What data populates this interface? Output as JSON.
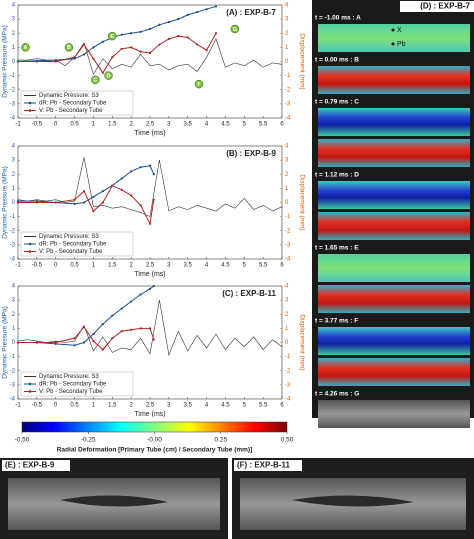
{
  "chart_data": [
    {
      "type": "line",
      "title": "(A) : EXP-B-7",
      "xlabel": "Time (ms)",
      "ylabel": "Dynamic Pressure (MPa)",
      "y2label": "Displacement (mm)",
      "xlim": [
        -1,
        6
      ],
      "xticks": [
        -1,
        -0.5,
        0,
        0.5,
        1,
        1.5,
        2,
        2.5,
        3,
        3.5,
        4,
        4.5,
        5,
        5.5,
        6
      ],
      "ylim": [
        -4,
        4
      ],
      "yticks": [
        -4,
        -3,
        -2,
        -1,
        0,
        1,
        2,
        3,
        4
      ],
      "y2lim": [
        -4,
        4
      ],
      "y2ticks": [
        -4,
        -3,
        -2,
        -1,
        0,
        1,
        2,
        3,
        4
      ],
      "legend": "lower left",
      "series": [
        {
          "name": "Dynamic Pressure: S3",
          "color": "#333333",
          "x": [
            -1,
            -0.75,
            -0.5,
            -0.25,
            0,
            0.25,
            0.5,
            0.75,
            1,
            1.25,
            1.5,
            1.75,
            2,
            2.25,
            2.5,
            2.75,
            3,
            3.25,
            3.5,
            3.75,
            4,
            4.25,
            4.5,
            4.75,
            5,
            5.25,
            5.5,
            5.75,
            6
          ],
          "values": [
            0.1,
            0.1,
            0.2,
            0.1,
            0.1,
            -0.3,
            0.3,
            1.3,
            -0.9,
            0.2,
            -0.5,
            -0.2,
            -0.4,
            0.5,
            -0.3,
            -0.2,
            -0.6,
            -0.3,
            -0.2,
            -0.7,
            0.3,
            1.6,
            -0.4,
            -0.1,
            -0.3,
            0.1,
            -0.4,
            -0.1,
            -0.2
          ]
        },
        {
          "name": "dR: Pb - Secondary Tube",
          "color": "#1a4f8a",
          "axis": "y2",
          "x": [
            -1,
            -0.5,
            0,
            0.5,
            0.75,
            1,
            1.25,
            1.5,
            1.75,
            2,
            2.25,
            2.5,
            2.75,
            3,
            3.25,
            3.5,
            3.75,
            4,
            4.25
          ],
          "values": [
            0,
            0.05,
            0.1,
            0.2,
            0.5,
            1.0,
            1.4,
            1.7,
            1.9,
            2.0,
            2.1,
            2.3,
            2.6,
            2.8,
            3.0,
            3.3,
            3.5,
            3.7,
            3.9
          ]
        },
        {
          "name": "V: Pb - Secondary Tube",
          "color": "#b22222",
          "axis": "y2",
          "x": [
            -1,
            -0.5,
            0,
            0.5,
            0.75,
            1,
            1.25,
            1.5,
            1.75,
            2,
            2.25,
            2.5,
            2.75,
            3,
            3.25,
            3.5,
            3.75,
            4,
            4.25
          ],
          "values": [
            0,
            0,
            0,
            0.3,
            1.2,
            0.2,
            -0.8,
            0.3,
            0.9,
            1.0,
            0.7,
            0.6,
            1.2,
            1.6,
            1.8,
            1.7,
            1.2,
            0.8,
            2.0
          ]
        }
      ],
      "annotations": [
        {
          "text": "A",
          "x": -0.8,
          "y": 1.0
        },
        {
          "text": "B",
          "x": 0.35,
          "y": 1.0
        },
        {
          "text": "C",
          "x": 1.05,
          "y": -1.3
        },
        {
          "text": "D",
          "x": 1.4,
          "y": -1.0
        },
        {
          "text": "E",
          "x": 1.5,
          "y": 1.8
        },
        {
          "text": "F",
          "x": 3.8,
          "y": -1.6
        },
        {
          "text": "G",
          "x": 4.75,
          "y": 2.3
        }
      ]
    },
    {
      "type": "line",
      "title": "(B) : EXP-B-9",
      "xlabel": "Time (ms)",
      "ylabel": "Dynamic Pressure (MPa)",
      "y2label": "Displacement (mm)",
      "xlim": [
        -1,
        6
      ],
      "xticks": [
        -1,
        -0.5,
        0,
        0.5,
        1,
        1.5,
        2,
        2.5,
        3,
        3.5,
        4,
        4.5,
        5,
        5.5,
        6
      ],
      "ylim": [
        -4,
        4
      ],
      "yticks": [
        -4,
        -3,
        -2,
        -1,
        0,
        1,
        2,
        3,
        4
      ],
      "y2lim": [
        -4,
        4
      ],
      "y2ticks": [
        -4,
        -3,
        -2,
        -1,
        0,
        1,
        2,
        3,
        4
      ],
      "legend": "lower left",
      "series": [
        {
          "name": "Dynamic Pressure: S3",
          "color": "#333333",
          "x": [
            -1,
            -0.75,
            -0.5,
            -0.25,
            0,
            0.25,
            0.5,
            0.75,
            1,
            1.25,
            1.5,
            1.75,
            2,
            2.25,
            2.5,
            2.75,
            3,
            3.25,
            3.5,
            3.75,
            4,
            4.25,
            4.5,
            4.75,
            5,
            5.25,
            5.5,
            5.75,
            6
          ],
          "values": [
            0.2,
            0.1,
            0.2,
            0.1,
            0.2,
            0,
            0.1,
            3.2,
            -0.3,
            -0.2,
            -0.4,
            -0.3,
            -0.5,
            -0.7,
            -1.0,
            3.0,
            -0.6,
            -0.3,
            -0.5,
            -0.2,
            -0.4,
            -0.6,
            -0.1,
            -0.4,
            0.3,
            -0.5,
            -0.2,
            -0.6,
            -0.3
          ]
        },
        {
          "name": "dR: Pb - Secondary Tube",
          "color": "#1a4f8a",
          "axis": "y2",
          "x": [
            -1,
            -0.5,
            0,
            0.5,
            0.75,
            1,
            1.25,
            1.5,
            1.75,
            2,
            2.25,
            2.5,
            2.6
          ],
          "values": [
            0.1,
            0.1,
            0,
            -0.1,
            0,
            0.4,
            0.8,
            1.2,
            1.7,
            2.2,
            2.5,
            2.6,
            2.0
          ]
        },
        {
          "name": "V: Pb - Secondary Tube",
          "color": "#b22222",
          "axis": "y2",
          "x": [
            -1,
            -0.5,
            0,
            0.5,
            0.75,
            1,
            1.25,
            1.5,
            1.75,
            2,
            2.25,
            2.5,
            2.6
          ],
          "values": [
            0,
            0,
            0,
            0.2,
            0.8,
            -0.6,
            0,
            1.2,
            0.9,
            0.5,
            -0.2,
            -1.5,
            0.2
          ]
        }
      ]
    },
    {
      "type": "line",
      "title": "(C) : EXP-B-11",
      "xlabel": "Time (ms)",
      "ylabel": "Dynamic Pressure (MPa)",
      "y2label": "Displacement (mm)",
      "xlim": [
        -1,
        6
      ],
      "xticks": [
        -1,
        -0.5,
        0,
        0.5,
        1,
        1.5,
        2,
        2.5,
        3,
        3.5,
        4,
        4.5,
        5,
        5.5,
        6
      ],
      "ylim": [
        -4,
        4
      ],
      "yticks": [
        -4,
        -3,
        -2,
        -1,
        0,
        1,
        2,
        3,
        4
      ],
      "y2lim": [
        -4,
        4
      ],
      "y2ticks": [
        -4,
        -3,
        -2,
        -1,
        0,
        1,
        2,
        3,
        4
      ],
      "legend": "lower left",
      "series": [
        {
          "name": "Dynamic Pressure: S3",
          "color": "#333333",
          "x": [
            -1,
            -0.75,
            -0.5,
            -0.25,
            0,
            0.25,
            0.5,
            0.75,
            1,
            1.25,
            1.5,
            1.75,
            2,
            2.25,
            2.5,
            2.75,
            3,
            3.25,
            3.5,
            3.75,
            4,
            4.25,
            4.5,
            4.75,
            5,
            5.25,
            5.5,
            5.75,
            6
          ],
          "values": [
            0.1,
            0.2,
            0.1,
            0,
            0.1,
            0,
            0.1,
            1.2,
            -0.6,
            0.4,
            -0.7,
            -0.4,
            -0.5,
            0.3,
            -0.8,
            3.0,
            -0.9,
            0.8,
            -0.6,
            0.5,
            -0.4,
            0.6,
            -0.5,
            0.3,
            -0.3,
            0.4,
            -0.5,
            0.2,
            -0.3
          ]
        },
        {
          "name": "dR: Pb - Secondary Tube",
          "color": "#1a4f8a",
          "axis": "y2",
          "x": [
            -1,
            -0.5,
            0,
            0.5,
            0.75,
            1,
            1.25,
            1.5,
            1.75,
            2,
            2.25,
            2.5,
            2.6
          ],
          "values": [
            0,
            0,
            -0.1,
            -0.2,
            0,
            0.6,
            1.3,
            1.9,
            2.4,
            2.9,
            3.4,
            3.8,
            4.0
          ]
        },
        {
          "name": "V: Pb - Secondary Tube",
          "color": "#b22222",
          "axis": "y2",
          "x": [
            -1,
            -0.5,
            0,
            0.5,
            0.75,
            1,
            1.25,
            1.5,
            1.75,
            2,
            2.25,
            2.5,
            2.6
          ],
          "values": [
            0,
            0,
            0,
            0.3,
            1.1,
            0.1,
            -0.5,
            0.3,
            0.8,
            0.9,
            1.0,
            1.0,
            0.2
          ]
        }
      ]
    }
  ],
  "colorbar": {
    "label": "Radial Deformation [Primary Tube (cm) / Secondary Tube (mm)]",
    "lim": [
      -0.5,
      0.5
    ],
    "ticks": [
      {
        "value": -0.5,
        "label": "-0.50"
      },
      {
        "value": -0.25,
        "label": "-0.25"
      },
      {
        "value": 0,
        "label": "-0.00"
      },
      {
        "value": 0.25,
        "label": "0.25"
      },
      {
        "value": 0.5,
        "label": "0.50"
      }
    ]
  },
  "panel_d": {
    "title": "(D) : EXP-B-7",
    "markers": [
      "X",
      "Pb"
    ],
    "frames": [
      "t = -1.00 ms : A",
      "t = 0.00 ms : B",
      "t = 0.79 ms : C",
      "t = 1.12 ms : D",
      "t = 1.65 ms : E",
      "t = 3.77 ms : F",
      "t = 4.26 ms : G"
    ]
  },
  "panel_e": {
    "title": "(E) : EXP-B-9"
  },
  "panel_f": {
    "title": "(F) : EXP-B-11"
  }
}
